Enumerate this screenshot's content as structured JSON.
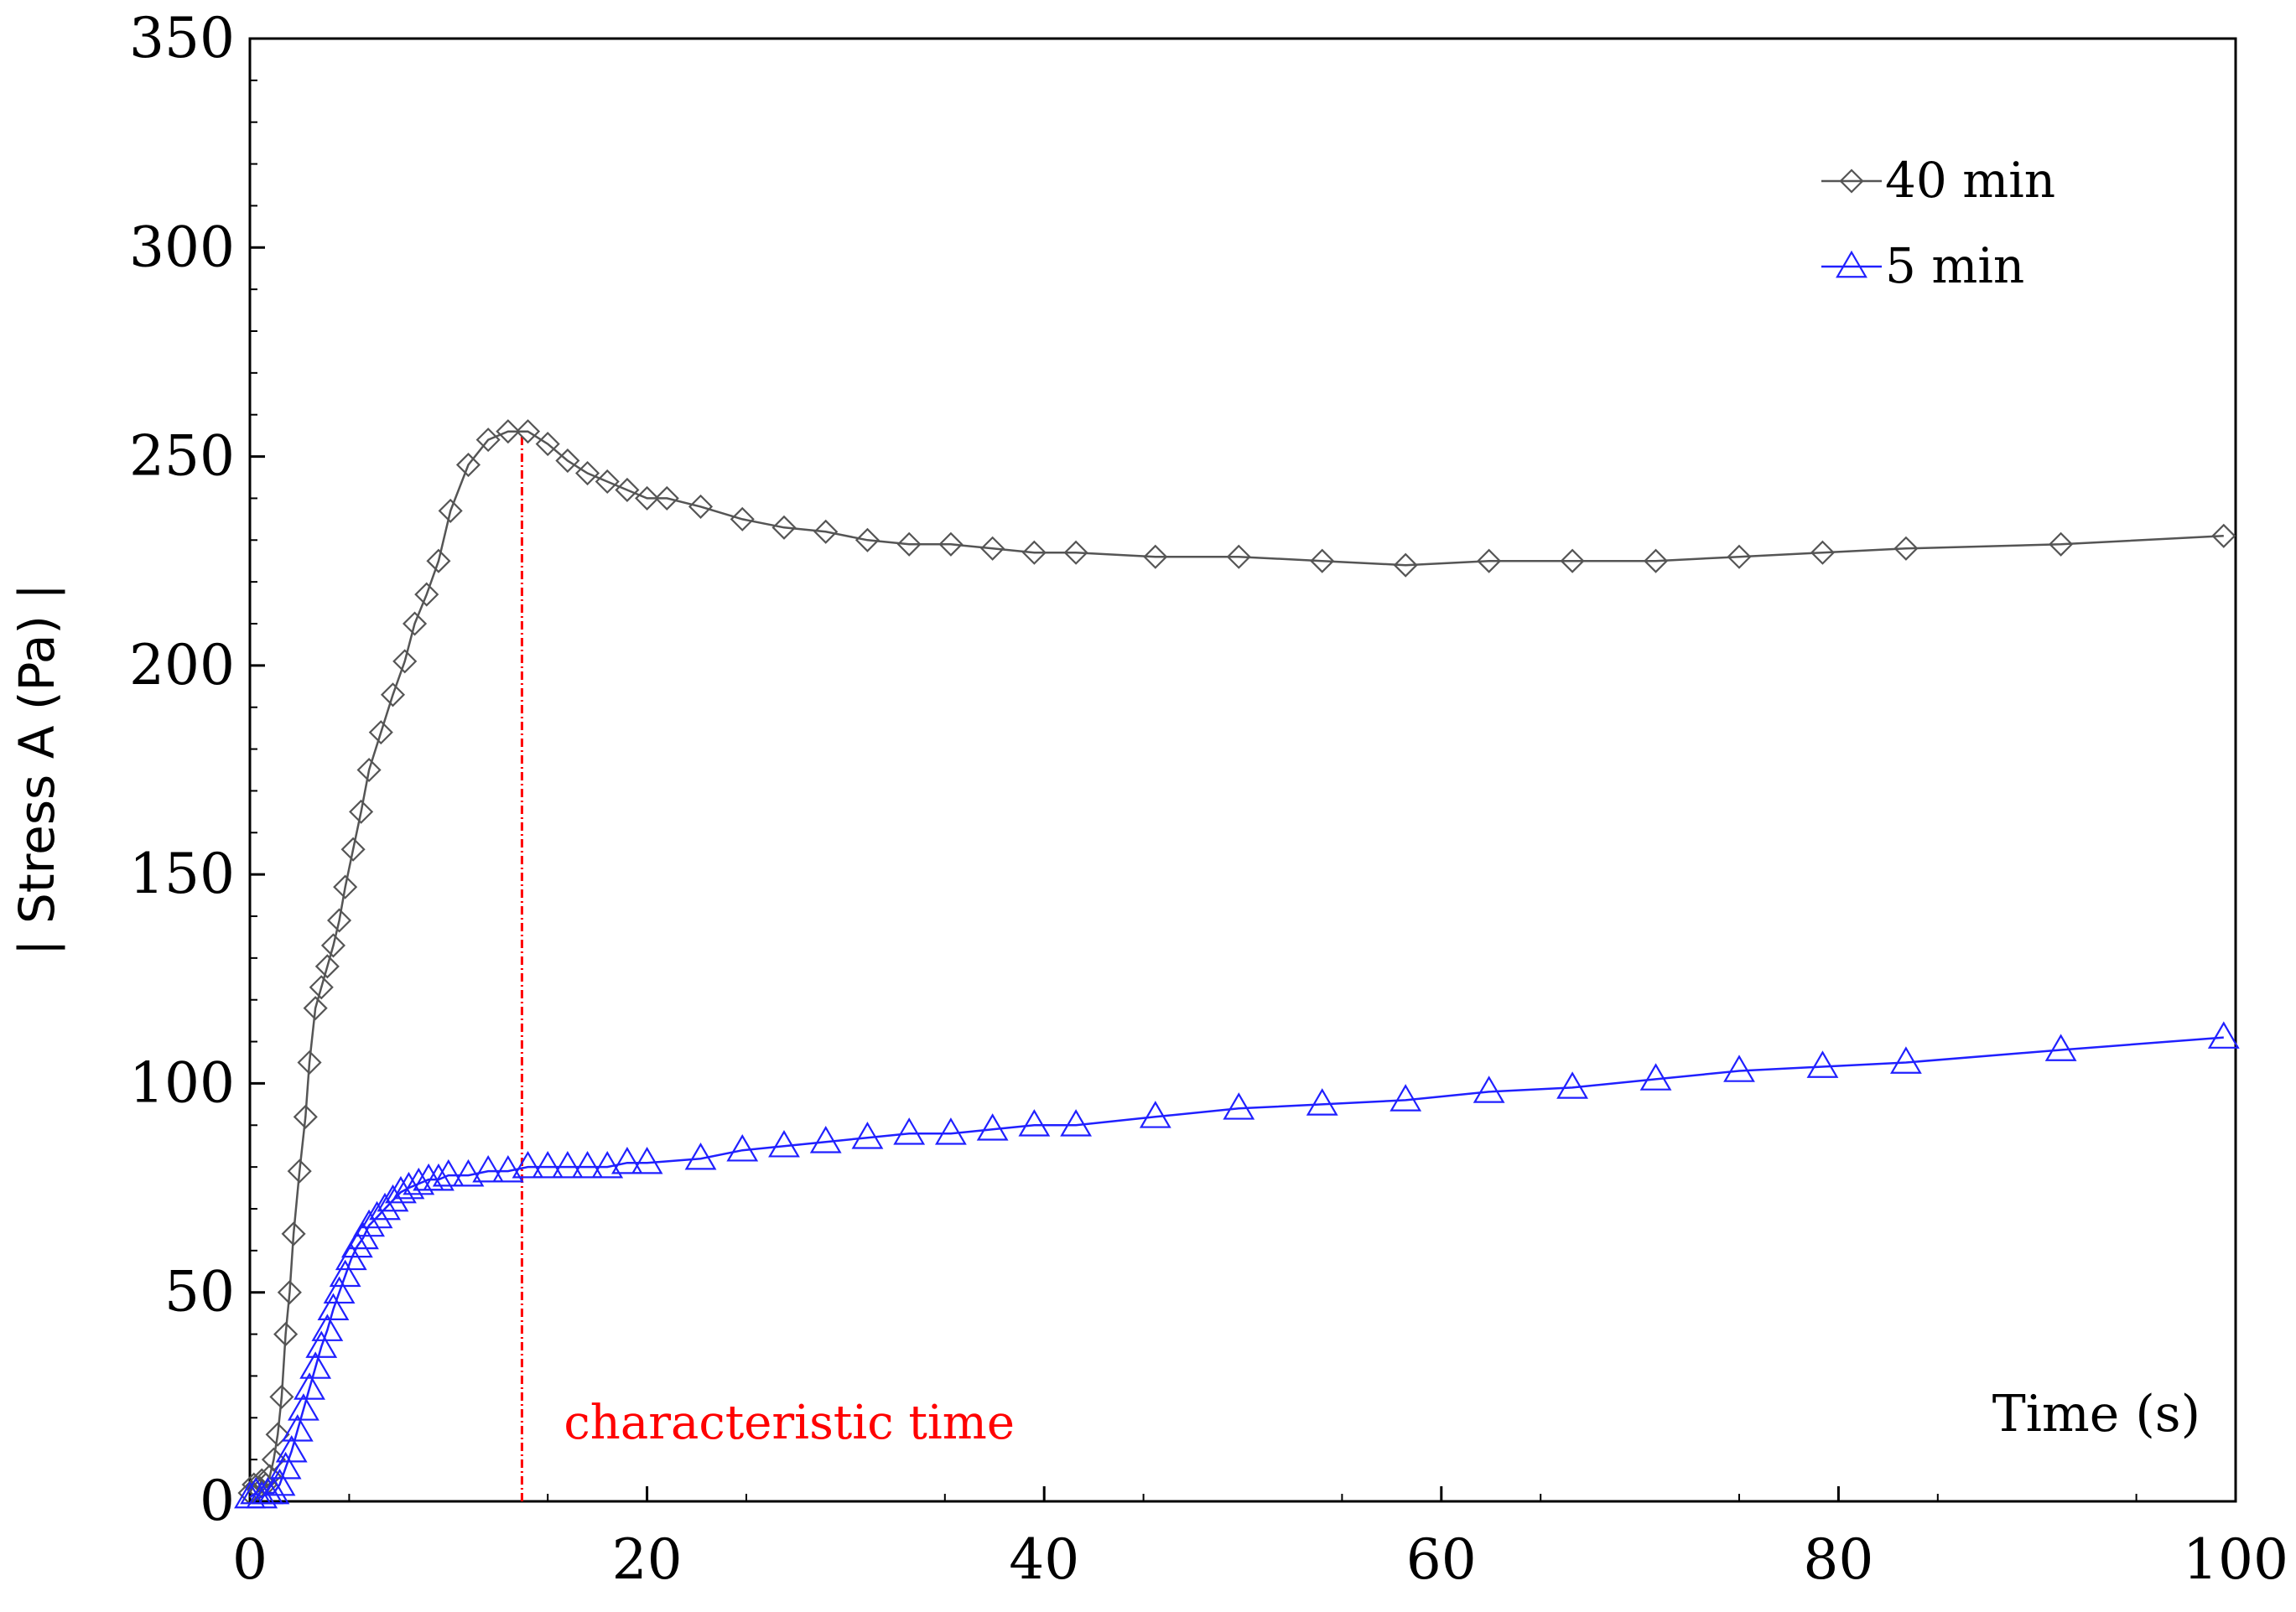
{
  "chart_data": {
    "type": "line",
    "title": "",
    "xlabel": "Time (s)",
    "ylabel": "| Stress A (Pa) |",
    "xlim": [
      0,
      100
    ],
    "ylim": [
      0,
      350
    ],
    "x_ticks": [
      0,
      20,
      40,
      60,
      80,
      100
    ],
    "y_ticks": [
      0,
      50,
      100,
      150,
      200,
      250,
      300,
      350
    ],
    "grid": false,
    "legend_position": "top-right",
    "annotation": {
      "text": "characteristic time",
      "x": 13.7
    },
    "series": [
      {
        "name": "40 min",
        "color": "#555555",
        "marker": "diamond",
        "x": [
          0,
          0.2,
          0.4,
          0.6,
          0.8,
          1.0,
          1.2,
          1.4,
          1.6,
          1.8,
          2.0,
          2.2,
          2.5,
          2.8,
          3.0,
          3.3,
          3.6,
          3.9,
          4.2,
          4.5,
          4.8,
          5.2,
          5.6,
          6.0,
          6.6,
          7.2,
          7.8,
          8.3,
          8.9,
          9.5,
          10.1,
          11.0,
          12.0,
          13.0,
          14.0,
          15.0,
          16.0,
          17.0,
          18.0,
          19.0,
          20.0,
          21.0,
          22.7,
          24.8,
          26.9,
          29.0,
          31.1,
          33.2,
          35.3,
          37.4,
          39.5,
          41.6,
          45.6,
          49.8,
          54.0,
          58.2,
          62.4,
          66.6,
          70.8,
          75.0,
          79.2,
          83.4,
          91.2,
          99.4
        ],
        "y": [
          2,
          4,
          3,
          5,
          4,
          6,
          10,
          16,
          25,
          40,
          50,
          64,
          79,
          92,
          105,
          118,
          123,
          128,
          133,
          139,
          147,
          156,
          165,
          175,
          184,
          193,
          201,
          210,
          217,
          225,
          237,
          248,
          254,
          256,
          256,
          253,
          249,
          246,
          244,
          242,
          240,
          240,
          238,
          235,
          233,
          232,
          230,
          229,
          229,
          228,
          227,
          227,
          226,
          226,
          225,
          224,
          225,
          225,
          225,
          226,
          227,
          228,
          229,
          231
        ]
      },
      {
        "name": "5 min",
        "color": "#2020ff",
        "marker": "triangle",
        "x": [
          0,
          0.3,
          0.6,
          0.9,
          1.2,
          1.5,
          1.8,
          2.1,
          2.4,
          2.7,
          3.0,
          3.3,
          3.6,
          3.9,
          4.2,
          4.5,
          4.8,
          5.1,
          5.4,
          5.7,
          6.0,
          6.4,
          6.8,
          7.2,
          7.6,
          8.0,
          8.5,
          9.0,
          9.5,
          10.0,
          11.0,
          12.0,
          13.0,
          14.0,
          15.0,
          16.0,
          17.0,
          18.0,
          19.0,
          20.0,
          22.7,
          24.8,
          26.9,
          29.0,
          31.1,
          33.2,
          35.3,
          37.4,
          39.5,
          41.6,
          45.6,
          49.8,
          54.0,
          58.2,
          62.4,
          66.6,
          70.8,
          75.0,
          79.2,
          83.4,
          91.2,
          99.4
        ],
        "y": [
          1,
          2,
          1,
          2,
          2,
          4,
          8,
          12,
          17,
          22,
          27,
          32,
          37,
          41,
          46,
          50,
          54,
          58,
          61,
          63,
          66,
          68,
          70,
          72,
          74,
          75,
          76,
          77,
          77,
          78,
          78,
          79,
          79,
          80,
          80,
          80,
          80,
          80,
          81,
          81,
          82,
          84,
          85,
          86,
          87,
          88,
          88,
          89,
          90,
          90,
          92,
          94,
          95,
          96,
          98,
          99,
          101,
          103,
          104,
          105,
          108,
          111
        ]
      }
    ]
  }
}
